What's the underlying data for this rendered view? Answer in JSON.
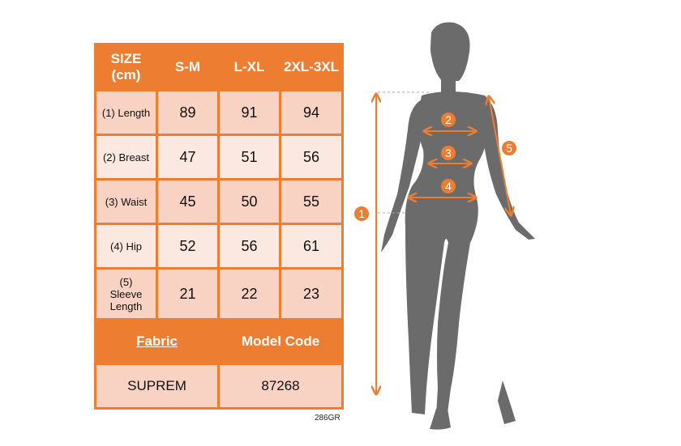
{
  "table": {
    "headers": [
      "SIZE (cm)",
      "S-M",
      "L-XL",
      "2XL-3XL"
    ],
    "rows": [
      {
        "label": "(1) Length",
        "values": [
          "89",
          "91",
          "94"
        ]
      },
      {
        "label": "(2) Breast",
        "values": [
          "47",
          "51",
          "56"
        ]
      },
      {
        "label": "(3) Waist",
        "values": [
          "45",
          "50",
          "55"
        ]
      },
      {
        "label": "(4) Hip",
        "values": [
          "52",
          "56",
          "61"
        ]
      },
      {
        "label": "(5) Sleeve Length",
        "values": [
          "21",
          "22",
          "23"
        ]
      }
    ],
    "footer_headers": [
      "Fabric",
      "Model Code"
    ],
    "footer_values": [
      "SUPREM",
      "87268"
    ]
  },
  "product_code": "286GR",
  "figure": {
    "markers": [
      "1",
      "2",
      "3",
      "4",
      "5"
    ]
  },
  "colors": {
    "accent": "#ED7D31",
    "silhouette": "#6B6B6B"
  }
}
